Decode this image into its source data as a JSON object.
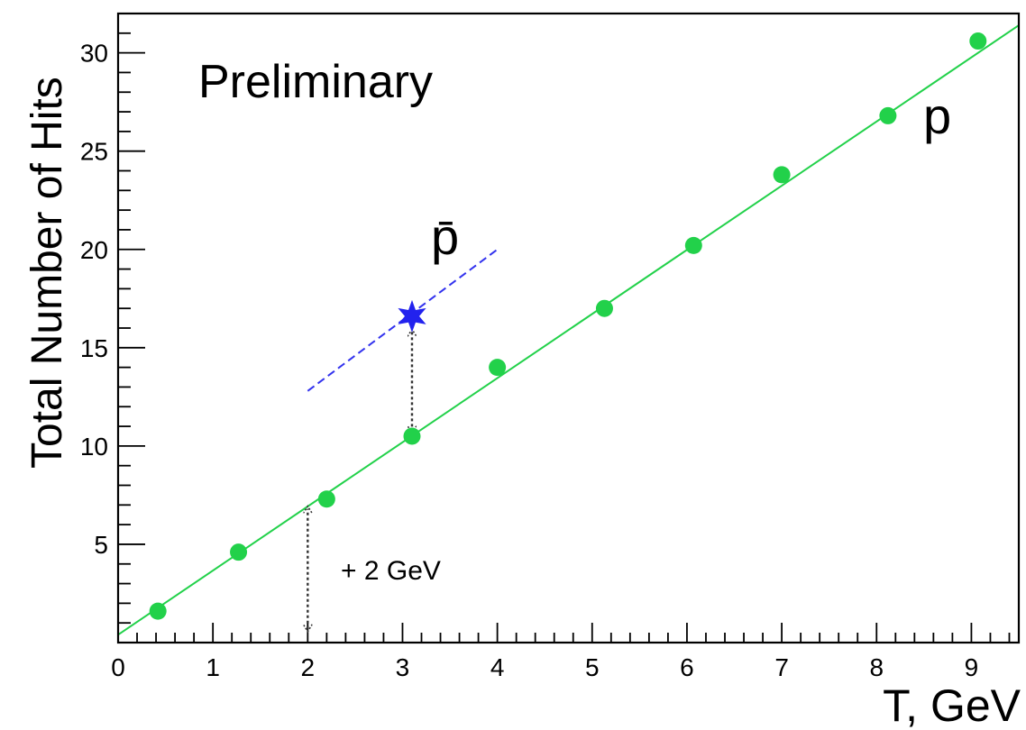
{
  "chart_data": {
    "type": "scatter",
    "ylabel": "Total Number of Hits",
    "xlabel": "T, GeV",
    "xlim": [
      0,
      9.5
    ],
    "ylim": [
      0,
      32
    ],
    "x_ticks": [
      "0",
      "1",
      "2",
      "3",
      "4",
      "5",
      "6",
      "7",
      "8",
      "9"
    ],
    "y_ticks": [
      "5",
      "10",
      "15",
      "20",
      "25",
      "30"
    ],
    "grid": false,
    "annotations": {
      "preliminary": "Preliminary",
      "shift": "+ 2 GeV"
    },
    "series": [
      {
        "name": "p",
        "color": "#22d14a",
        "marker": "circle",
        "x": [
          0.42,
          1.27,
          2.2,
          3.1,
          4.0,
          5.13,
          6.07,
          7.0,
          8.12,
          9.07
        ],
        "y": [
          1.6,
          4.6,
          7.3,
          10.5,
          14.0,
          17.0,
          20.2,
          23.8,
          26.8,
          30.6
        ],
        "fit": {
          "type": "line",
          "x_range": [
            0,
            9.5
          ],
          "y_range": [
            0.4,
            31.4
          ],
          "color": "#22d14a"
        }
      },
      {
        "name": "p̄",
        "color": "#2222ee",
        "marker": "star",
        "x": [
          3.1
        ],
        "y": [
          16.6
        ],
        "fit": {
          "type": "dashed-line",
          "x_range": [
            2.0,
            4.0
          ],
          "y_range": [
            12.8,
            20.0
          ],
          "color": "#3333ee"
        }
      }
    ],
    "arrows": [
      {
        "x": 2.0,
        "y_from": 0.7,
        "y_to": 6.8,
        "style": "dotted-double"
      },
      {
        "x": 3.1,
        "y_from": 15.8,
        "y_to": 10.8,
        "style": "dotted-double"
      }
    ]
  }
}
